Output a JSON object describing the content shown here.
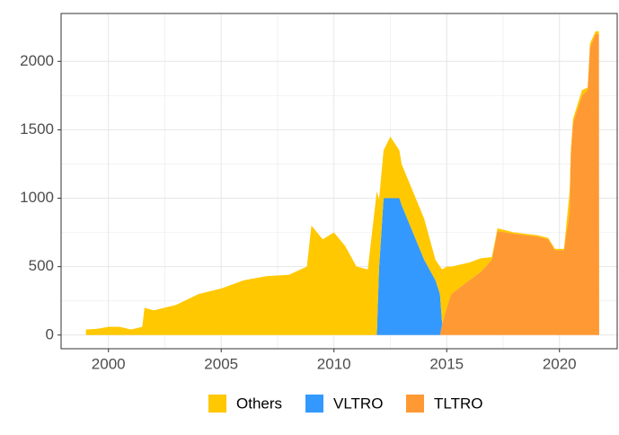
{
  "chart_data": {
    "type": "area",
    "x": [
      1999.0,
      1999.5,
      2000.0,
      2000.5,
      2001.0,
      2001.5,
      2001.6,
      2002.0,
      2003.0,
      2004.0,
      2005.0,
      2006.0,
      2007.0,
      2008.0,
      2008.8,
      2009.0,
      2009.5,
      2010.0,
      2010.5,
      2011.0,
      2011.5,
      2011.9,
      2012.0,
      2012.2,
      2012.5,
      2012.9,
      2013.0,
      2013.5,
      2014.0,
      2014.5,
      2014.7,
      2014.8,
      2015.0,
      2015.2,
      2016.0,
      2016.5,
      2017.0,
      2017.25,
      2018.0,
      2019.0,
      2019.5,
      2019.8,
      2020.2,
      2020.45,
      2020.5,
      2020.6,
      2021.0,
      2021.25,
      2021.35,
      2021.6,
      2021.75,
      2021.76
    ],
    "series": [
      {
        "name": "Others",
        "color": "#ffc800",
        "values": [
          40,
          45,
          60,
          60,
          40,
          60,
          200,
          180,
          220,
          300,
          340,
          400,
          430,
          440,
          500,
          800,
          700,
          750,
          650,
          500,
          480,
          1050,
          500,
          350,
          450,
          350,
          300,
          300,
          300,
          150,
          200,
          400,
          300,
          200,
          130,
          100,
          20,
          20,
          10,
          10,
          10,
          10,
          10,
          150,
          50,
          30,
          40,
          20,
          30,
          20,
          20,
          0
        ]
      },
      {
        "name": "VLTRO",
        "color": "#3399ff",
        "values": [
          0,
          0,
          0,
          0,
          0,
          0,
          0,
          0,
          0,
          0,
          0,
          0,
          0,
          0,
          0,
          0,
          0,
          0,
          0,
          0,
          0,
          0,
          490,
          1000,
          1000,
          1000,
          950,
          750,
          550,
          400,
          300,
          0,
          0,
          0,
          0,
          0,
          0,
          0,
          0,
          0,
          0,
          0,
          0,
          0,
          0,
          0,
          0,
          0,
          0,
          0,
          0,
          0
        ]
      },
      {
        "name": "TLTRO",
        "color": "#ff9933",
        "values": [
          0,
          0,
          0,
          0,
          0,
          0,
          0,
          0,
          0,
          0,
          0,
          0,
          0,
          0,
          0,
          0,
          0,
          0,
          0,
          0,
          0,
          0,
          0,
          0,
          0,
          0,
          0,
          0,
          0,
          0,
          0,
          80,
          200,
          300,
          400,
          460,
          550,
          760,
          740,
          720,
          700,
          620,
          620,
          900,
          1300,
          1550,
          1750,
          1790,
          2100,
          2200,
          2200,
          0
        ]
      }
    ],
    "xlim": [
      1997.9,
      2022.6
    ],
    "xticks": [
      2000,
      2005,
      2010,
      2015,
      2020
    ],
    "ylim": [
      -100,
      2350
    ],
    "yticks": [
      0,
      500,
      1000,
      1500,
      2000
    ],
    "grid": true,
    "legend": "bottom"
  }
}
